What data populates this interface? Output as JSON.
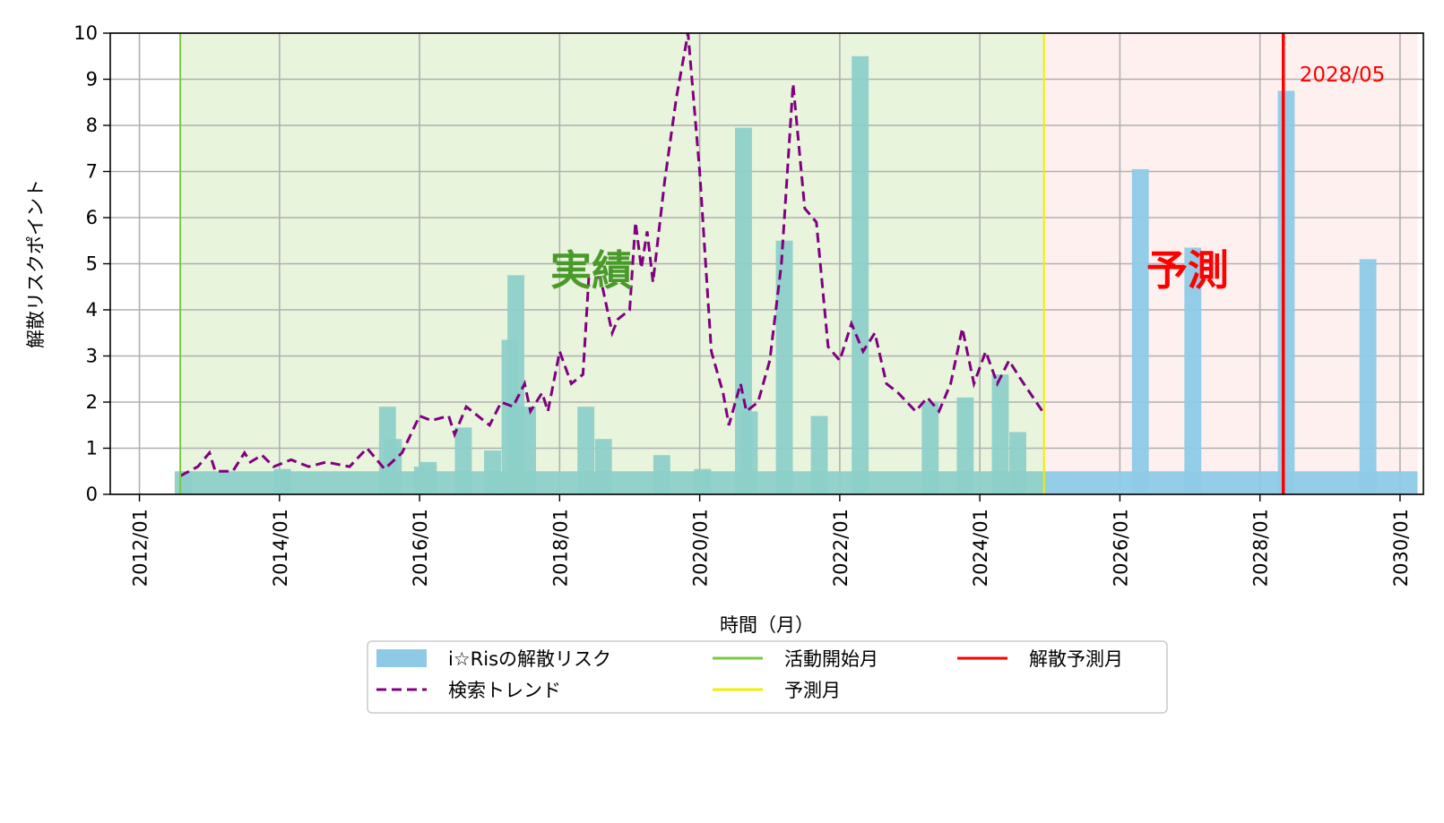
{
  "chart_data": {
    "type": "bar",
    "xlabel": "時間（月）",
    "ylabel": "解散リスクポイント",
    "ylim": [
      0,
      10
    ],
    "xlim": [
      "2011/08",
      "2030/05"
    ],
    "y_ticks": [
      "0",
      "1",
      "2",
      "3",
      "4",
      "5",
      "6",
      "7",
      "8",
      "9",
      "10"
    ],
    "x_ticks": [
      "2012/01",
      "2014/01",
      "2016/01",
      "2018/01",
      "2020/01",
      "2022/01",
      "2024/01",
      "2026/01",
      "2028/01",
      "2030/01"
    ],
    "grid": true,
    "regions": [
      {
        "label": "実績",
        "start": "2012/08",
        "end": "2024/12",
        "color": "#e8f4dc",
        "label_color": "#4a9a2a"
      },
      {
        "label": "予測",
        "start": "2024/12",
        "end": "2030/04",
        "color": "#fff0f0",
        "label_color": "#ff0000"
      }
    ],
    "series": [
      {
        "name": "i☆Risの解散リスク",
        "kind": "bar",
        "color": "#8ecae6",
        "actual_color": "#8dd0c8",
        "points": [
          [
            "2012/08",
            0.5
          ],
          [
            "2014/01",
            0.55
          ],
          [
            "2015/07",
            1.9
          ],
          [
            "2015/08",
            1.2
          ],
          [
            "2016/01",
            0.6
          ],
          [
            "2016/02",
            0.7
          ],
          [
            "2016/08",
            1.45
          ],
          [
            "2017/01",
            0.95
          ],
          [
            "2017/04",
            3.35
          ],
          [
            "2017/05",
            4.75
          ],
          [
            "2017/07",
            1.9
          ],
          [
            "2018/05",
            1.9
          ],
          [
            "2018/08",
            1.2
          ],
          [
            "2019/06",
            0.85
          ],
          [
            "2020/01",
            0.55
          ],
          [
            "2020/08",
            7.95
          ],
          [
            "2020/09",
            1.8
          ],
          [
            "2021/03",
            5.5
          ],
          [
            "2021/09",
            1.7
          ],
          [
            "2022/04",
            9.5
          ],
          [
            "2023/04",
            2.0
          ],
          [
            "2023/10",
            2.1
          ],
          [
            "2024/04",
            2.6
          ],
          [
            "2024/07",
            1.35
          ],
          [
            "2026/04",
            7.05
          ],
          [
            "2027/01",
            5.35
          ],
          [
            "2028/05",
            8.75
          ],
          [
            "2029/07",
            5.1
          ]
        ],
        "baseline": 0.5
      },
      {
        "name": "検索トレンド",
        "kind": "line",
        "style": "dashed",
        "color": "#800080",
        "points": [
          [
            "2012/08",
            0.4
          ],
          [
            "2012/11",
            0.6
          ],
          [
            "2013/01",
            0.9
          ],
          [
            "2013/02",
            0.5
          ],
          [
            "2013/05",
            0.5
          ],
          [
            "2013/07",
            0.9
          ],
          [
            "2013/08",
            0.7
          ],
          [
            "2013/10",
            0.85
          ],
          [
            "2013/12",
            0.6
          ],
          [
            "2014/03",
            0.75
          ],
          [
            "2014/06",
            0.6
          ],
          [
            "2014/09",
            0.7
          ],
          [
            "2015/01",
            0.6
          ],
          [
            "2015/04",
            1.0
          ],
          [
            "2015/07",
            0.55
          ],
          [
            "2015/10",
            0.9
          ],
          [
            "2016/01",
            1.7
          ],
          [
            "2016/03",
            1.6
          ],
          [
            "2016/06",
            1.7
          ],
          [
            "2016/07",
            1.3
          ],
          [
            "2016/09",
            1.9
          ],
          [
            "2017/01",
            1.5
          ],
          [
            "2017/03",
            2.0
          ],
          [
            "2017/05",
            1.9
          ],
          [
            "2017/07",
            2.4
          ],
          [
            "2017/08",
            1.8
          ],
          [
            "2017/10",
            2.2
          ],
          [
            "2017/11",
            1.8
          ],
          [
            "2018/01",
            3.1
          ],
          [
            "2018/03",
            2.4
          ],
          [
            "2018/05",
            2.6
          ],
          [
            "2018/06",
            4.7
          ],
          [
            "2018/08",
            4.7
          ],
          [
            "2018/10",
            3.5
          ],
          [
            "2018/11",
            3.8
          ],
          [
            "2019/01",
            4.0
          ],
          [
            "2019/02",
            5.9
          ],
          [
            "2019/03",
            4.9
          ],
          [
            "2019/04",
            5.7
          ],
          [
            "2019/05",
            4.6
          ],
          [
            "2019/07",
            6.8
          ],
          [
            "2019/09",
            8.6
          ],
          [
            "2019/11",
            10.0
          ],
          [
            "2020/01",
            7.0
          ],
          [
            "2020/03",
            3.1
          ],
          [
            "2020/05",
            2.2
          ],
          [
            "2020/06",
            1.5
          ],
          [
            "2020/08",
            2.4
          ],
          [
            "2020/09",
            1.8
          ],
          [
            "2020/11",
            2.0
          ],
          [
            "2021/01",
            2.9
          ],
          [
            "2021/03",
            5.0
          ],
          [
            "2021/05",
            8.9
          ],
          [
            "2021/07",
            6.2
          ],
          [
            "2021/09",
            5.9
          ],
          [
            "2021/11",
            3.2
          ],
          [
            "2022/01",
            2.9
          ],
          [
            "2022/03",
            3.7
          ],
          [
            "2022/05",
            3.1
          ],
          [
            "2022/07",
            3.5
          ],
          [
            "2022/09",
            2.4
          ],
          [
            "2022/11",
            2.2
          ],
          [
            "2023/02",
            1.8
          ],
          [
            "2023/04",
            2.1
          ],
          [
            "2023/06",
            1.8
          ],
          [
            "2023/08",
            2.4
          ],
          [
            "2023/10",
            3.6
          ],
          [
            "2023/12",
            2.4
          ],
          [
            "2024/02",
            3.1
          ],
          [
            "2024/04",
            2.4
          ],
          [
            "2024/06",
            2.9
          ],
          [
            "2024/08",
            2.5
          ],
          [
            "2024/12",
            1.75
          ]
        ]
      },
      {
        "name": "活動開始月",
        "kind": "vline",
        "at": "2012/08",
        "color": "#7ac943"
      },
      {
        "name": "予測月",
        "kind": "vline",
        "at": "2024/12",
        "color": "#f0f000"
      },
      {
        "name": "解散予測月",
        "kind": "vline",
        "at": "2028/05",
        "color": "#ff0000"
      }
    ],
    "annotations": [
      {
        "text": "2028/05",
        "at": "2028/05",
        "y": 8.95,
        "color": "#ff0000"
      }
    ],
    "legend": {
      "position": "below",
      "entries": [
        {
          "label": "i☆Risの解散リスク",
          "kind": "bar",
          "color": "#8ecae6"
        },
        {
          "label": "検索トレンド",
          "kind": "dashed",
          "color": "#800080"
        },
        {
          "label": "活動開始月",
          "kind": "line",
          "color": "#7ac943"
        },
        {
          "label": "予測月",
          "kind": "line",
          "color": "#f0f000"
        },
        {
          "label": "解散予測月",
          "kind": "line",
          "color": "#ff0000"
        }
      ]
    }
  }
}
